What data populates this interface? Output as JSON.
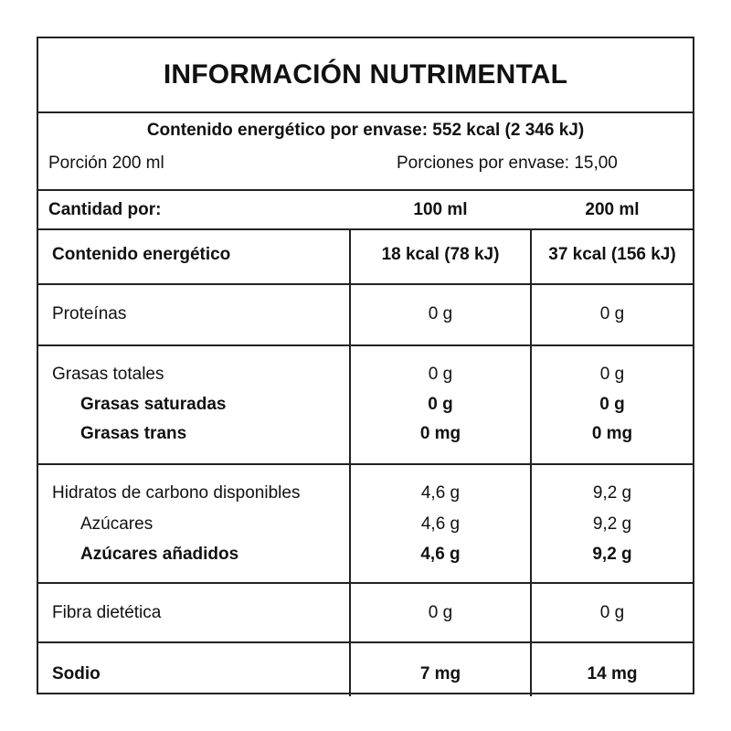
{
  "title": "INFORMACIÓN NUTRIMENTAL",
  "energy_per_package": "Contenido energético por envase: 552 kcal (2 346 kJ)",
  "portion": "Porción 200 ml",
  "portions_per_package": "Porciones por envase: 15,00",
  "header": {
    "label": "Cantidad por:",
    "col1": "100 ml",
    "col2": "200 ml"
  },
  "rows": {
    "energy": {
      "label": "Contenido energético",
      "v1": "18 kcal (78 kJ)",
      "v2": "37 kcal (156 kJ)"
    },
    "protein": {
      "label": "Proteínas",
      "v1": "0 g",
      "v2": "0 g"
    },
    "fat": {
      "label": "Grasas totales",
      "v1": "0 g",
      "v2": "0 g"
    },
    "sat_fat": {
      "label": "Grasas saturadas",
      "v1": "0 g",
      "v2": "0 g"
    },
    "trans_fat": {
      "label": "Grasas trans",
      "v1": "0 mg",
      "v2": "0 mg"
    },
    "carbs": {
      "label": "Hidratos de carbono disponibles",
      "v1": "4,6 g",
      "v2": "9,2 g"
    },
    "sugars": {
      "label": "Azúcares",
      "v1": "4,6 g",
      "v2": "9,2 g"
    },
    "added_sugar": {
      "label": "Azúcares añadidos",
      "v1": "4,6 g",
      "v2": "9,2 g"
    },
    "fiber": {
      "label": "Fibra dietética",
      "v1": "0 g",
      "v2": "0 g"
    },
    "sodium": {
      "label": "Sodio",
      "v1": "7 mg",
      "v2": "14 mg"
    }
  }
}
